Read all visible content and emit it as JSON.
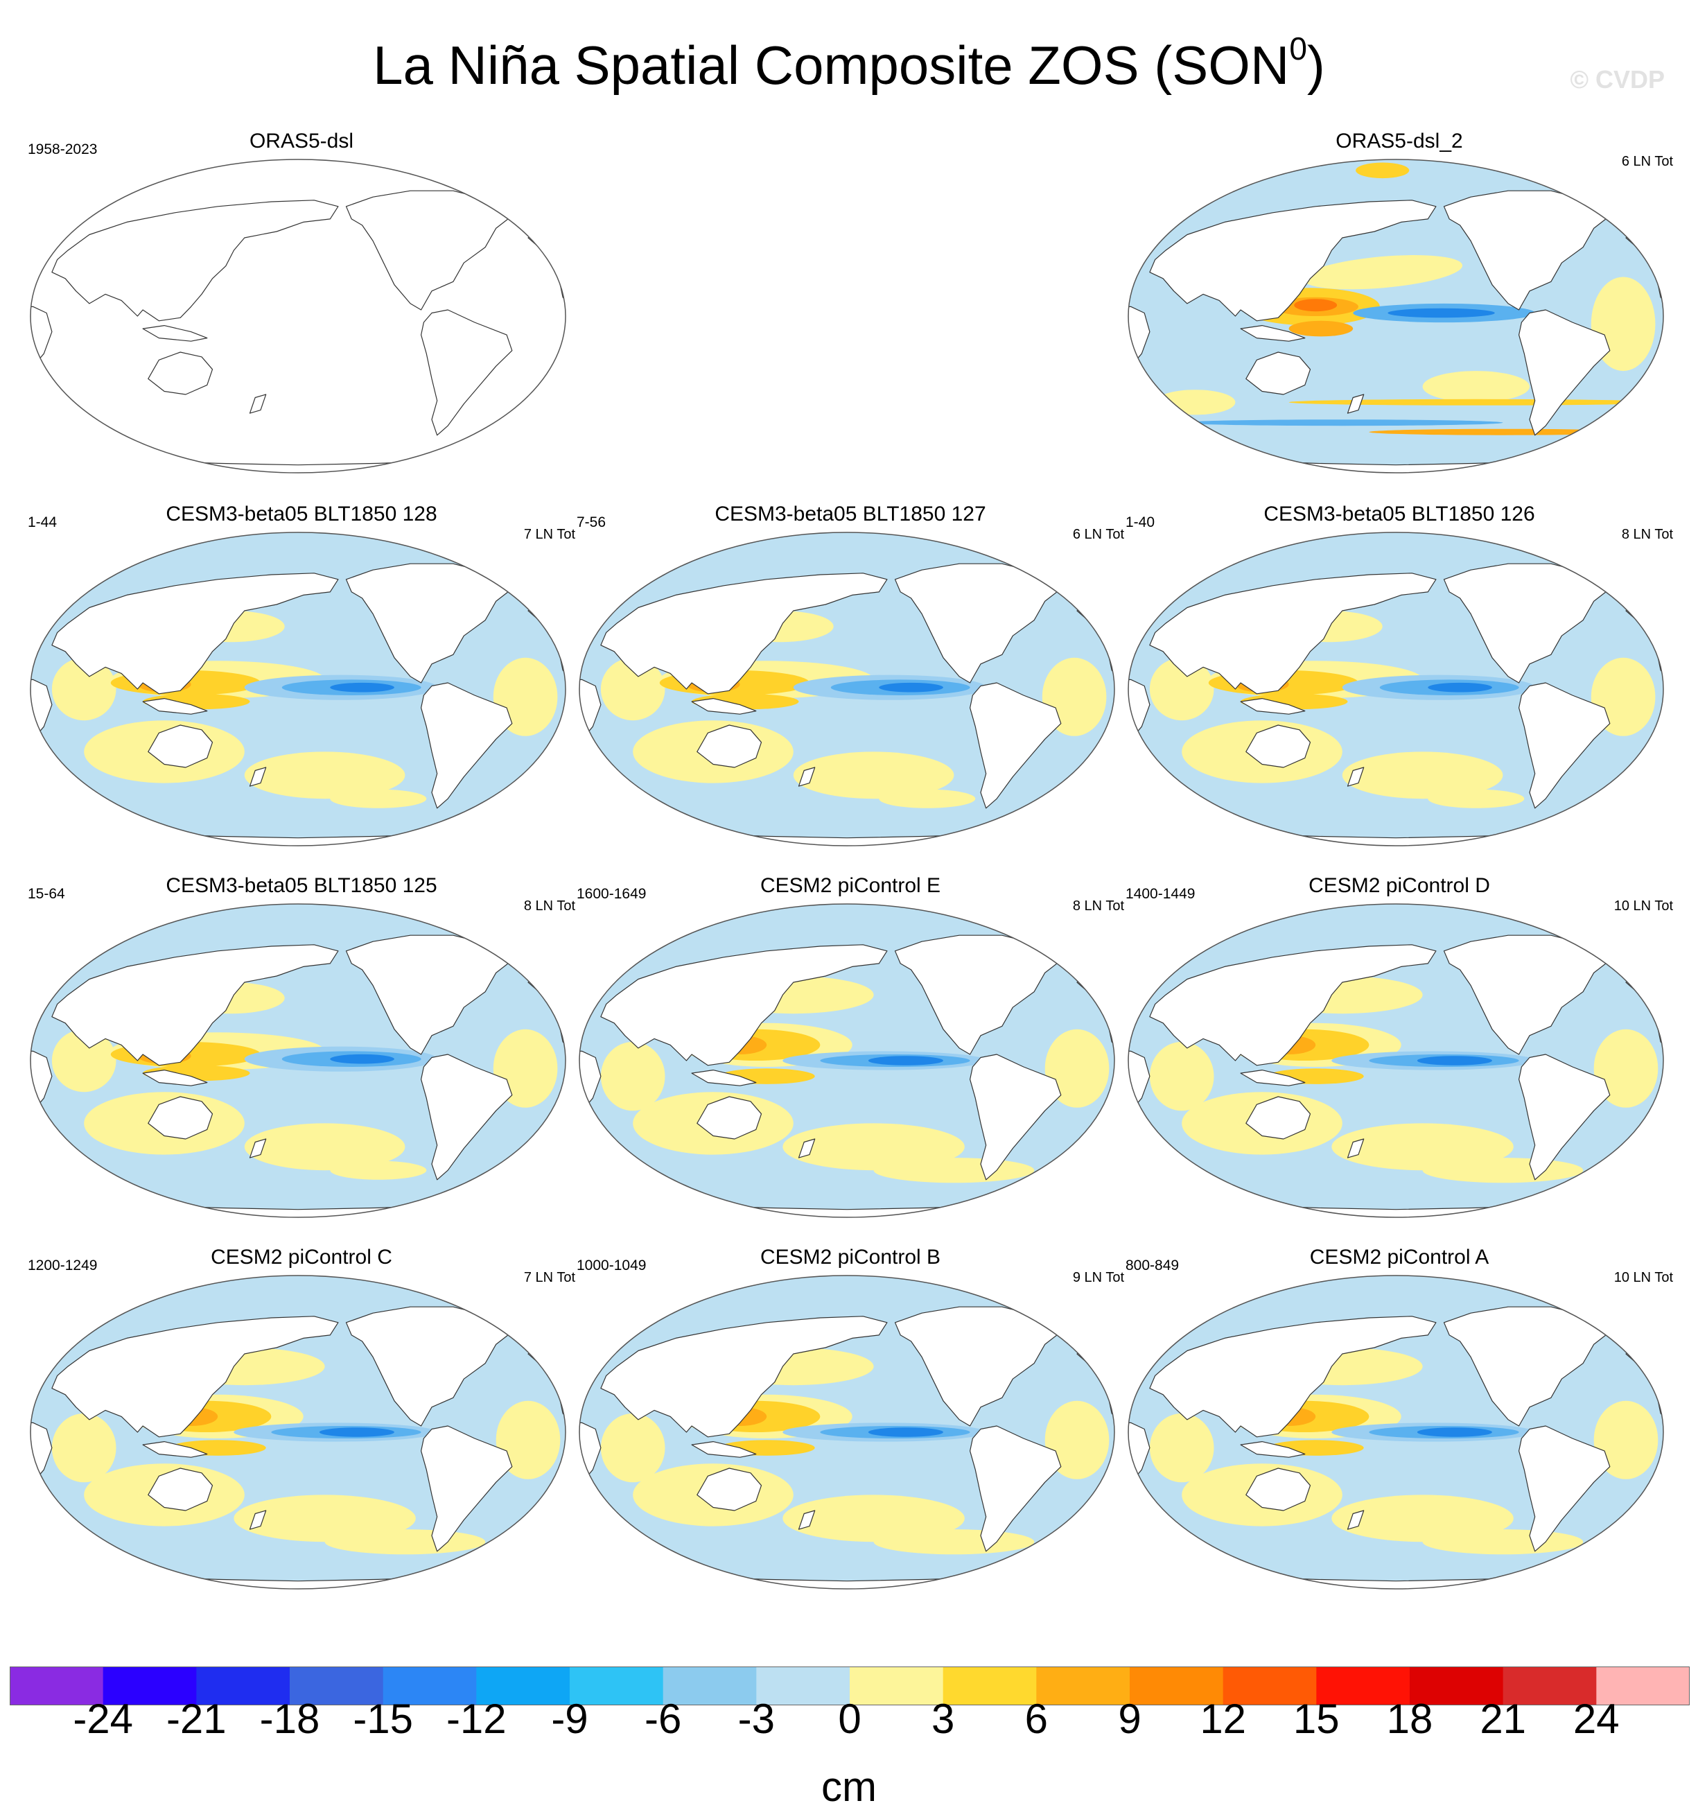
{
  "figure": {
    "title_main": "La Niña Spatial Composite ZOS (SON",
    "title_sup": "0",
    "title_close": ")",
    "watermark": "© CVDP"
  },
  "panels": [
    {
      "id": "oras5-dsl",
      "title": "ORAS5-dsl",
      "years": "1958-2023",
      "count": "",
      "blank": true,
      "style": "none"
    },
    null,
    {
      "id": "oras5-dsl-2",
      "title": "ORAS5-dsl_2",
      "years": "",
      "count": "6 LN Tot",
      "blank": false,
      "style": "obs"
    },
    {
      "id": "blt1850-128",
      "title": "CESM3-beta05 BLT1850 128",
      "years": "1-44",
      "count": "7 LN Tot",
      "blank": false,
      "style": "beta"
    },
    {
      "id": "blt1850-127",
      "title": "CESM3-beta05 BLT1850 127",
      "years": "7-56",
      "count": "6 LN Tot",
      "blank": false,
      "style": "beta"
    },
    {
      "id": "blt1850-126",
      "title": "CESM3-beta05 BLT1850 126",
      "years": "1-40",
      "count": "8 LN Tot",
      "blank": false,
      "style": "beta"
    },
    {
      "id": "blt1850-125",
      "title": "CESM3-beta05 BLT1850 125",
      "years": "15-64",
      "count": "8 LN Tot",
      "blank": false,
      "style": "beta"
    },
    {
      "id": "picontrol-e",
      "title": "CESM2 piControl E",
      "years": "1600-1649",
      "count": "8 LN Tot",
      "blank": false,
      "style": "cesm2"
    },
    {
      "id": "picontrol-d",
      "title": "CESM2 piControl D",
      "years": "1400-1449",
      "count": "10 LN Tot",
      "blank": false,
      "style": "cesm2"
    },
    {
      "id": "picontrol-c",
      "title": "CESM2 piControl C",
      "years": "1200-1249",
      "count": "7 LN Tot",
      "blank": false,
      "style": "cesm2"
    },
    {
      "id": "picontrol-b",
      "title": "CESM2 piControl B",
      "years": "1000-1049",
      "count": "9 LN Tot",
      "blank": false,
      "style": "cesm2"
    },
    {
      "id": "picontrol-a",
      "title": "CESM2 piControl A",
      "years": "800-849",
      "count": "10 LN Tot",
      "blank": false,
      "style": "cesm2"
    }
  ],
  "chart_data": {
    "type": "heatmap",
    "title": "La Niña Spatial Composite ZOS (SON0)",
    "variable": "ZOS",
    "season": "SON",
    "colorbar": {
      "unit": "cm",
      "levels": [
        -24,
        -21,
        -18,
        -15,
        -12,
        -9,
        -6,
        -3,
        0,
        3,
        6,
        9,
        12,
        15,
        18,
        21,
        24
      ],
      "tick_labels": [
        "-24",
        "-21",
        "-18",
        "-15",
        "-12",
        "-9",
        "-6",
        "-3",
        "0",
        "3",
        "6",
        "9",
        "12",
        "15",
        "18",
        "21",
        "24"
      ],
      "colors": [
        "#8a2be2",
        "#2b00ff",
        "#1f2df0",
        "#3b66e0",
        "#2c86f5",
        "#0ea6f5",
        "#2ec3f5",
        "#8ccbee",
        "#bde0f2",
        "#fdf59a",
        "#ffd92e",
        "#ffae14",
        "#ff8a05",
        "#ff5a05",
        "#ff1205",
        "#dd0202",
        "#d92b2b",
        "#ffb4b4"
      ]
    },
    "feature_colors": {
      "neg_strong": "#1f86e8",
      "neg_mid": "#5ab1ef",
      "neg_weak": "#9ccff1",
      "background": "#bde0f2",
      "pos_weak": "#fdf59a",
      "pos_mid": "#ffd22a",
      "pos_strong": "#ffad16",
      "pos_peak": "#ff7a08",
      "land": "#ffffff"
    }
  }
}
